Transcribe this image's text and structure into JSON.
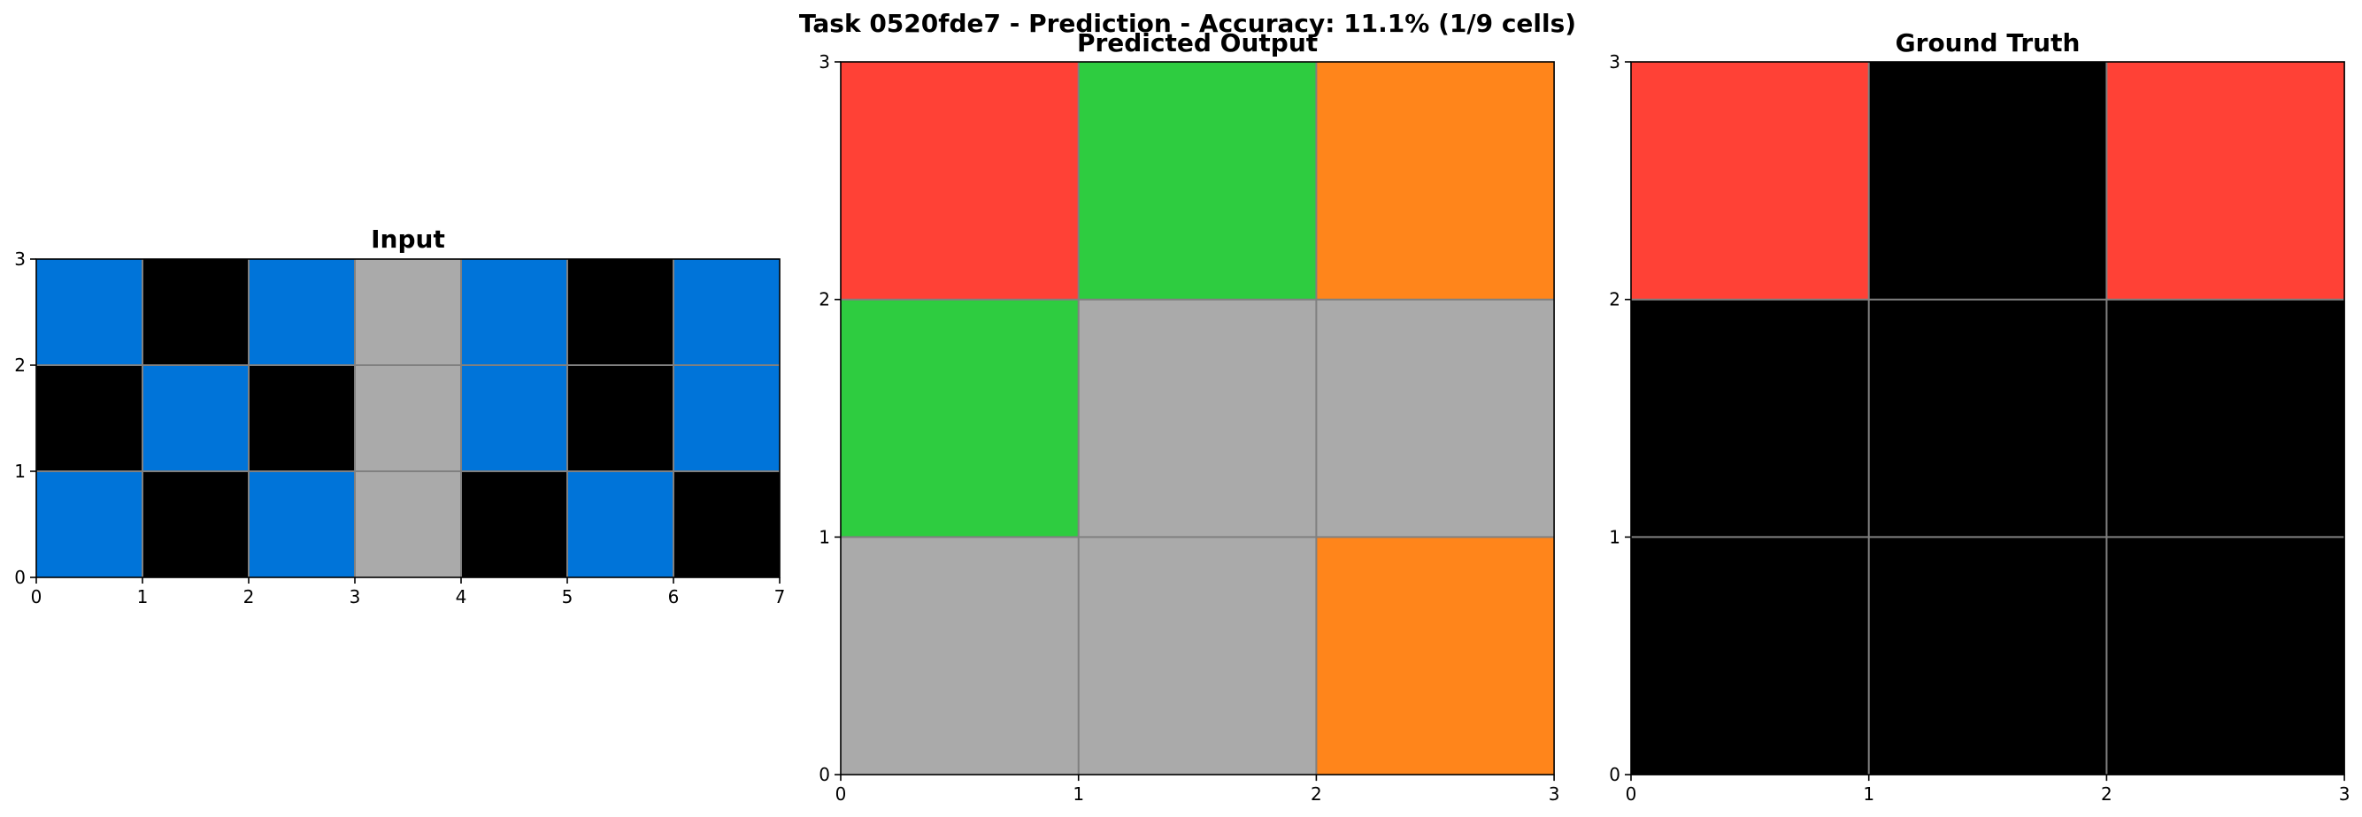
{
  "figure": {
    "title": "Task 0520fde7 - Prediction - Accuracy: 11.1% (1/9 cells)"
  },
  "palette": {
    "0": "#000000",
    "1": "#0074D9",
    "2": "#FF4136",
    "3": "#2ECC40",
    "5": "#AAAAAA",
    "7": "#FF851B"
  },
  "grid_line_color": "#808080",
  "chart_data": [
    {
      "type": "heatmap",
      "title": "Input",
      "xlim": [
        0,
        7
      ],
      "ylim": [
        0,
        3
      ],
      "xticks": [
        0,
        1,
        2,
        3,
        4,
        5,
        6,
        7
      ],
      "yticks": [
        0,
        1,
        2,
        3
      ],
      "grid": true,
      "cells": [
        [
          1,
          0,
          1,
          5,
          1,
          0,
          1
        ],
        [
          0,
          1,
          0,
          5,
          1,
          0,
          1
        ],
        [
          1,
          0,
          1,
          5,
          0,
          1,
          0
        ]
      ]
    },
    {
      "type": "heatmap",
      "title": "Predicted Output",
      "xlim": [
        0,
        3
      ],
      "ylim": [
        0,
        3
      ],
      "xticks": [
        0,
        1,
        2,
        3
      ],
      "yticks": [
        0,
        1,
        2,
        3
      ],
      "grid": true,
      "cells": [
        [
          2,
          3,
          7
        ],
        [
          3,
          5,
          5
        ],
        [
          5,
          5,
          7
        ]
      ]
    },
    {
      "type": "heatmap",
      "title": "Ground Truth",
      "xlim": [
        0,
        3
      ],
      "ylim": [
        0,
        3
      ],
      "xticks": [
        0,
        1,
        2,
        3
      ],
      "yticks": [
        0,
        1,
        2,
        3
      ],
      "grid": true,
      "cells": [
        [
          2,
          0,
          2
        ],
        [
          0,
          0,
          0
        ],
        [
          0,
          0,
          0
        ]
      ]
    }
  ]
}
